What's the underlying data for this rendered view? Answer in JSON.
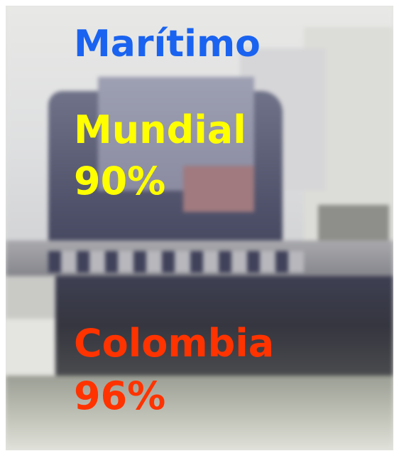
{
  "title": "Marítimo",
  "world": {
    "label": "Mundial",
    "value": "90%"
  },
  "colombia": {
    "label": "Colombia",
    "value": "96%"
  },
  "colors": {
    "title": "#1a63f0",
    "world": "#ffff00",
    "colombia": "#ff3300"
  }
}
